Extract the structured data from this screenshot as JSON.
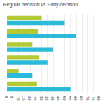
{
  "chart_data": {
    "type": "bar",
    "title": "Regular decision vs Early decision",
    "orientation": "horizontal",
    "categories": [
      null,
      null,
      null,
      null,
      null,
      null
    ],
    "series": [
      {
        "color": "#b5c935",
        "values": [
          26,
          10,
          28,
          22,
          27,
          30
        ]
      },
      {
        "color": "#2bbad8",
        "values": [
          55,
          22,
          35,
          40,
          60,
          50
        ]
      }
    ],
    "xlim": [
      0,
      80
    ],
    "xticks": [
      0,
      5,
      10,
      15,
      20,
      25,
      30,
      35,
      40,
      45,
      50,
      55,
      60,
      65,
      70,
      75,
      80
    ],
    "grid": true,
    "tick_labels": "x"
  }
}
